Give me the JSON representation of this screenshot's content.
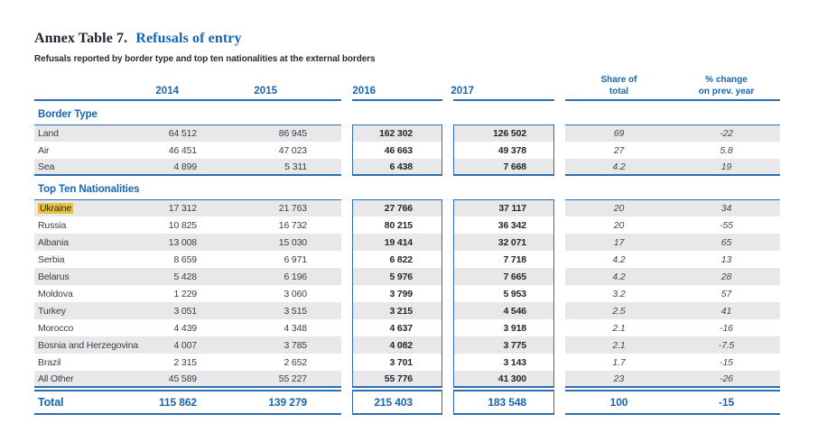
{
  "header": {
    "annex_label": "Annex Table 7.",
    "title": "Refusals of entry",
    "subtitle": "Refusals reported by border type and top ten nationalities at the external borders"
  },
  "columns": {
    "years": [
      "2014",
      "2015",
      "2016",
      "2017"
    ],
    "share": "Share of\ntotal",
    "pct_change": "% change\non prev. year"
  },
  "colors": {
    "accent_blue": "#1766af",
    "line_blue": "#2f6fb0",
    "stripe_gray": "#e8e8ea",
    "highlight_gold": "#e9c23f"
  },
  "table": {
    "sections": [
      {
        "title": "Border Type",
        "rows": [
          {
            "label": "Land",
            "y2014": "64 512",
            "y2015": "86 945",
            "y2016": "162 302",
            "y2017": "126 502",
            "share": "69",
            "pct": "-22"
          },
          {
            "label": "Air",
            "y2014": "46 451",
            "y2015": "47 023",
            "y2016": "46 663",
            "y2017": "49 378",
            "share": "27",
            "pct": "5.8"
          },
          {
            "label": "Sea",
            "y2014": "4 899",
            "y2015": "5 311",
            "y2016": "6 438",
            "y2017": "7 668",
            "share": "4.2",
            "pct": "19"
          }
        ]
      },
      {
        "title": "Top Ten Nationalities",
        "rows": [
          {
            "label": "Ukraine",
            "highlight": true,
            "y2014": "17 312",
            "y2015": "21 763",
            "y2016": "27 766",
            "y2017": "37 117",
            "share": "20",
            "pct": "34"
          },
          {
            "label": "Russia",
            "y2014": "10 825",
            "y2015": "16 732",
            "y2016": "80 215",
            "y2017": "36 342",
            "share": "20",
            "pct": "-55"
          },
          {
            "label": "Albania",
            "y2014": "13 008",
            "y2015": "15 030",
            "y2016": "19 414",
            "y2017": "32 071",
            "share": "17",
            "pct": "65"
          },
          {
            "label": "Serbia",
            "y2014": "8 659",
            "y2015": "6 971",
            "y2016": "6 822",
            "y2017": "7 718",
            "share": "4.2",
            "pct": "13"
          },
          {
            "label": "Belarus",
            "y2014": "5 428",
            "y2015": "6 196",
            "y2016": "5 976",
            "y2017": "7 665",
            "share": "4.2",
            "pct": "28"
          },
          {
            "label": "Moldova",
            "y2014": "1 229",
            "y2015": "3 060",
            "y2016": "3 799",
            "y2017": "5 953",
            "share": "3.2",
            "pct": "57"
          },
          {
            "label": "Turkey",
            "y2014": "3 051",
            "y2015": "3 515",
            "y2016": "3 215",
            "y2017": "4 546",
            "share": "2.5",
            "pct": "41"
          },
          {
            "label": "Morocco",
            "y2014": "4 439",
            "y2015": "4 348",
            "y2016": "4 637",
            "y2017": "3 918",
            "share": "2.1",
            "pct": "-16"
          },
          {
            "label": "Bosnia and Herzegovina",
            "y2014": "4 007",
            "y2015": "3 785",
            "y2016": "4 082",
            "y2017": "3 775",
            "share": "2.1",
            "pct": "-7.5"
          },
          {
            "label": "Brazil",
            "y2014": "2 315",
            "y2015": "2 652",
            "y2016": "3 701",
            "y2017": "3 143",
            "share": "1.7",
            "pct": "-15"
          },
          {
            "label": "All Other",
            "y2014": "45 589",
            "y2015": "55 227",
            "y2016": "55 776",
            "y2017": "41 300",
            "share": "23",
            "pct": "-26"
          }
        ]
      }
    ],
    "total": {
      "label": "Total",
      "y2014": "115 862",
      "y2015": "139 279",
      "y2016": "215 403",
      "y2017": "183 548",
      "share": "100",
      "pct": "-15"
    }
  }
}
